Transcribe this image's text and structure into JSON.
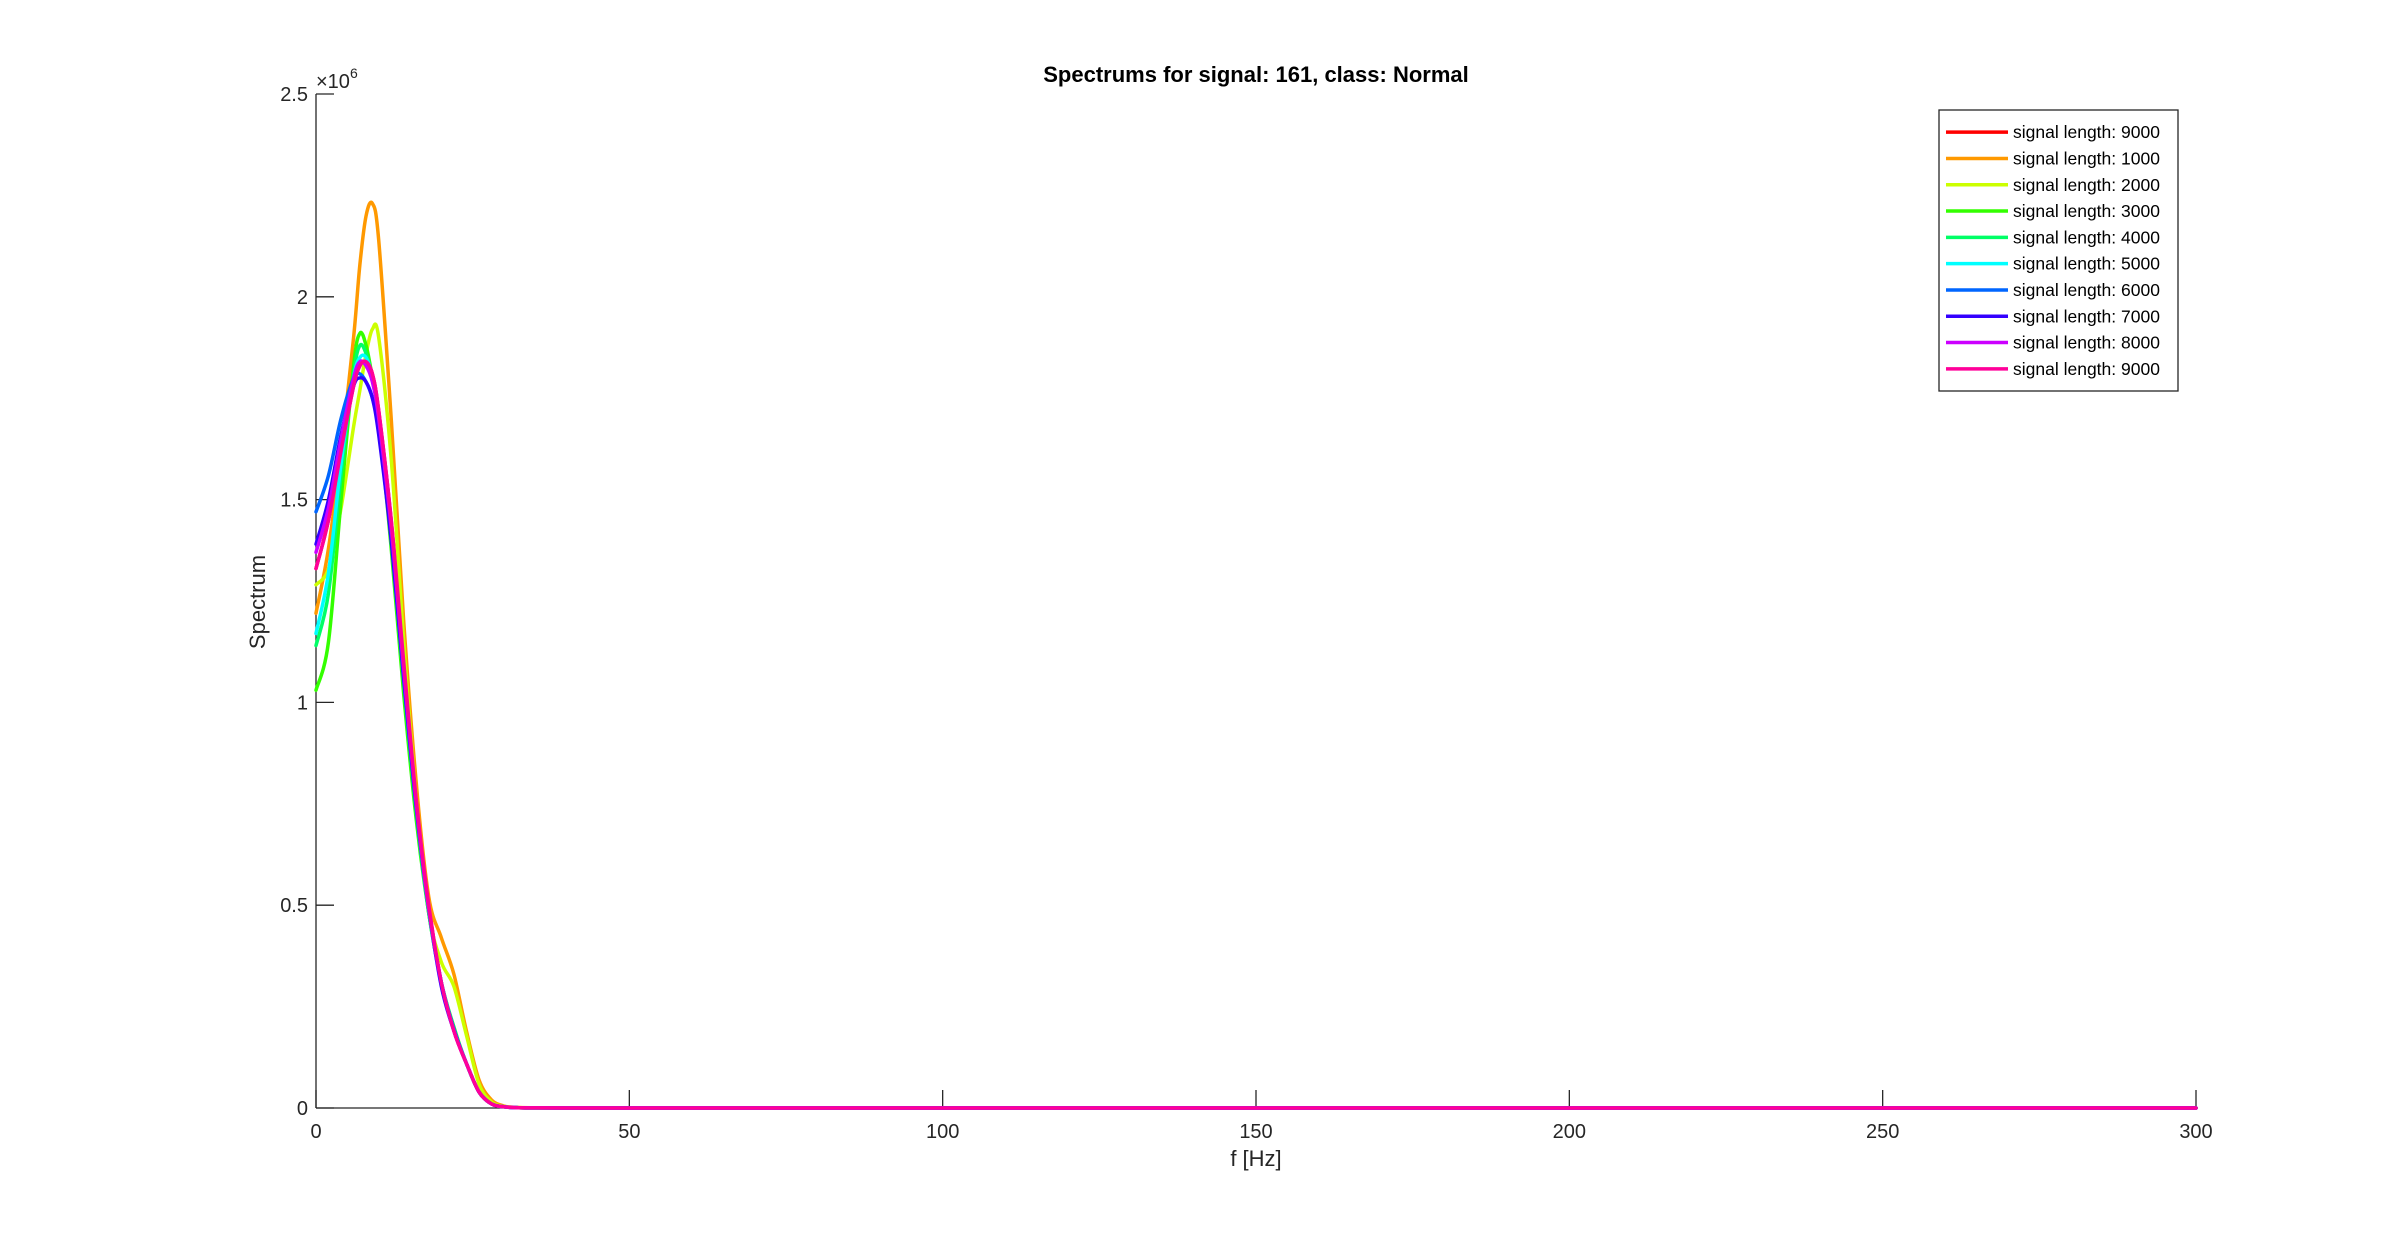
{
  "chart_data": {
    "type": "line",
    "title": "Spectrums for signal: 161, class: Normal",
    "xlabel": "f [Hz]",
    "ylabel": "Spectrum",
    "xlim": [
      0,
      300
    ],
    "ylim": [
      0,
      2500000
    ],
    "x_ticks": [
      0,
      50,
      100,
      150,
      200,
      250,
      300
    ],
    "y_ticks": [
      0,
      500000,
      1000000,
      1500000,
      2000000,
      2500000
    ],
    "x_tick_labels": [
      "0",
      "50",
      "100",
      "150",
      "200",
      "250",
      "300"
    ],
    "y_tick_labels": [
      "0",
      "0.5",
      "1",
      "1.5",
      "2",
      "2.5"
    ],
    "y_exponent": {
      "base": "×10",
      "power": "6"
    },
    "grid": false,
    "legend_position": "top-right",
    "x": [
      0,
      2,
      4,
      6,
      7,
      8,
      9,
      10,
      12,
      14,
      16,
      18,
      20,
      22,
      24,
      26,
      28,
      30,
      32,
      35,
      40,
      50,
      60,
      80,
      100,
      150,
      200,
      250,
      300
    ],
    "series": [
      {
        "name": "signal length: 9000",
        "color": "#ff0000",
        "values": [
          1330000,
          1450000,
          1620000,
          1780000,
          1830000,
          1840000,
          1810000,
          1720000,
          1450000,
          1100000,
          760000,
          500000,
          310000,
          190000,
          110000,
          40000,
          10000,
          3000,
          1000,
          300,
          100,
          0,
          0,
          0,
          0,
          0,
          0,
          0,
          0
        ]
      },
      {
        "name": "signal length: 1000",
        "color": "#ff9900",
        "values": [
          1220000,
          1380000,
          1620000,
          1900000,
          2080000,
          2200000,
          2230000,
          2140000,
          1700000,
          1200000,
          800000,
          520000,
          420000,
          330000,
          190000,
          70000,
          20000,
          5000,
          1500,
          400,
          100,
          0,
          0,
          0,
          0,
          0,
          0,
          0,
          0
        ]
      },
      {
        "name": "signal length: 2000",
        "color": "#ccff00",
        "values": [
          1290000,
          1330000,
          1480000,
          1680000,
          1770000,
          1860000,
          1920000,
          1900000,
          1600000,
          1150000,
          760000,
          480000,
          360000,
          300000,
          180000,
          60000,
          15000,
          4000,
          1200,
          300,
          100,
          0,
          0,
          0,
          0,
          0,
          0,
          0,
          0
        ]
      },
      {
        "name": "signal length: 3000",
        "color": "#33ff00",
        "values": [
          1030000,
          1150000,
          1500000,
          1830000,
          1910000,
          1880000,
          1800000,
          1700000,
          1380000,
          1020000,
          710000,
          480000,
          310000,
          200000,
          110000,
          40000,
          10000,
          3000,
          900,
          300,
          100,
          0,
          0,
          0,
          0,
          0,
          0,
          0,
          0
        ]
      },
      {
        "name": "signal length: 4000",
        "color": "#00ff66",
        "values": [
          1140000,
          1270000,
          1560000,
          1810000,
          1880000,
          1860000,
          1800000,
          1700000,
          1400000,
          1050000,
          730000,
          480000,
          310000,
          195000,
          110000,
          40000,
          10000,
          3000,
          900,
          300,
          100,
          0,
          0,
          0,
          0,
          0,
          0,
          0,
          0
        ]
      },
      {
        "name": "signal length: 5000",
        "color": "#00ffff",
        "values": [
          1170000,
          1320000,
          1590000,
          1800000,
          1850000,
          1850000,
          1800000,
          1700000,
          1420000,
          1060000,
          740000,
          490000,
          310000,
          195000,
          110000,
          40000,
          10000,
          3000,
          900,
          300,
          100,
          0,
          0,
          0,
          0,
          0,
          0,
          0,
          0
        ]
      },
      {
        "name": "signal length: 6000",
        "color": "#0066ff",
        "values": [
          1470000,
          1560000,
          1700000,
          1800000,
          1810000,
          1790000,
          1750000,
          1680000,
          1400000,
          1060000,
          740000,
          490000,
          310000,
          195000,
          110000,
          40000,
          10000,
          3000,
          900,
          300,
          100,
          0,
          0,
          0,
          0,
          0,
          0,
          0,
          0
        ]
      },
      {
        "name": "signal length: 7000",
        "color": "#3300ff",
        "values": [
          1390000,
          1500000,
          1660000,
          1780000,
          1800000,
          1790000,
          1750000,
          1660000,
          1400000,
          1060000,
          740000,
          490000,
          300000,
          190000,
          110000,
          40000,
          10000,
          3000,
          900,
          300,
          100,
          0,
          0,
          0,
          0,
          0,
          0,
          0,
          0
        ]
      },
      {
        "name": "signal length: 8000",
        "color": "#cc00ff",
        "values": [
          1370000,
          1480000,
          1650000,
          1800000,
          1840000,
          1830000,
          1790000,
          1700000,
          1430000,
          1080000,
          750000,
          490000,
          310000,
          190000,
          110000,
          40000,
          10000,
          3000,
          900,
          300,
          100,
          0,
          0,
          0,
          0,
          0,
          0,
          0,
          0
        ]
      },
      {
        "name": "signal length: 9000",
        "color": "#ff0099",
        "values": [
          1330000,
          1450000,
          1620000,
          1780000,
          1830000,
          1840000,
          1810000,
          1720000,
          1450000,
          1100000,
          760000,
          500000,
          310000,
          190000,
          110000,
          40000,
          10000,
          3000,
          1000,
          300,
          100,
          0,
          0,
          0,
          0,
          0,
          0,
          0,
          0
        ]
      }
    ]
  }
}
